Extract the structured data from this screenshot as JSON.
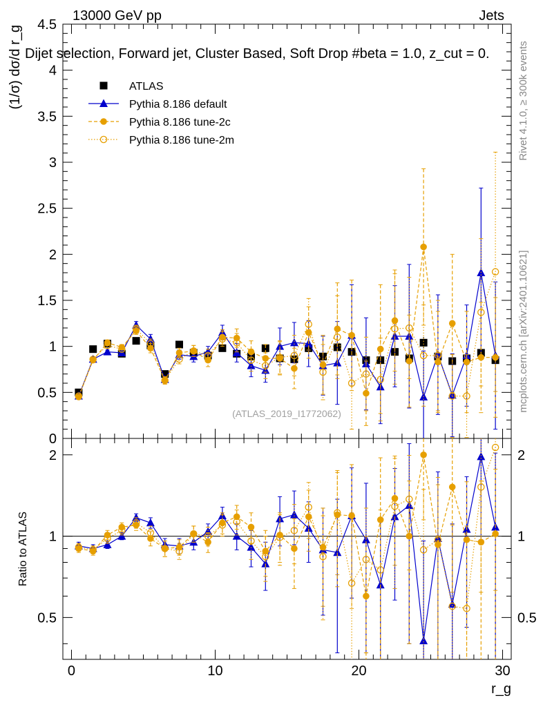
{
  "header": {
    "energy_label": "13000 GeV pp",
    "category_label": "Jets",
    "title": "Dijet selection, Forward jet, Cluster Based, Soft Drop #beta = 1.0, z_cut = 0.",
    "side_label_top": "Rivet 4.1.0, ≥ 300k events",
    "side_label_bottom": "mcplots.cern.ch [arXiv:2401.10621]",
    "watermark": "(ATLAS_2019_I1772062)"
  },
  "chart_data": [
    {
      "type": "scatter",
      "panel": "main",
      "ylabel": "(1/σ) dσ/d r_g",
      "xlim": [
        -0.6,
        30.6
      ],
      "ylim": [
        0,
        4.5
      ],
      "yticks": [
        0.5,
        1,
        1.5,
        2,
        2.5,
        3,
        3.5,
        4,
        4.5
      ],
      "ytick_labels": [
        "0.5",
        "1",
        "1.5",
        "2",
        "2.5",
        "3",
        "3.5",
        "4",
        "4.5"
      ],
      "x": [
        0.5,
        1.5,
        2.5,
        3.5,
        4.5,
        5.5,
        6.5,
        7.5,
        8.5,
        9.5,
        10.5,
        11.5,
        12.5,
        13.5,
        14.5,
        15.5,
        16.5,
        17.5,
        18.5,
        19.5,
        20.5,
        21.5,
        22.5,
        23.5,
        24.5,
        25.5,
        26.5,
        27.5,
        28.5,
        29.5
      ],
      "legend": [
        "ATLAS",
        "Pythia 8.186 default",
        "Pythia 8.186 tune-2c",
        "Pythia 8.186 tune-2m"
      ],
      "series": [
        {
          "name": "ATLAS",
          "color": "#000000",
          "marker": "square",
          "values": [
            0.5,
            0.97,
            1.03,
            0.92,
            1.06,
            1.01,
            0.7,
            1.02,
            0.93,
            0.9,
            0.98,
            0.92,
            0.89,
            0.98,
            0.87,
            0.86,
            0.98,
            0.89,
            0.99,
            0.94,
            0.85,
            0.85,
            0.94,
            0.87,
            1.04,
            0.89,
            0.84,
            0.87,
            0.93,
            0.85
          ],
          "errors": [
            0.01,
            0.01,
            0.01,
            0.01,
            0.01,
            0.01,
            0.01,
            0.02,
            0.02,
            0.02,
            0.02,
            0.02,
            0.03,
            0.03,
            0.03,
            0.03,
            0.04,
            0.04,
            0.05,
            0.05,
            0.05,
            0.05,
            0.05,
            0.05,
            0.06,
            0.06,
            0.06,
            0.06,
            0.06,
            0.06
          ]
        },
        {
          "name": "Pythia 8.186 default",
          "color": "#0000cc",
          "marker": "triangle",
          "values": [
            0.46,
            0.86,
            0.94,
            0.93,
            1.23,
            1.08,
            0.64,
            0.91,
            0.89,
            0.94,
            1.15,
            0.93,
            0.79,
            0.74,
            1.0,
            1.04,
            1.03,
            0.79,
            0.82,
            1.12,
            0.81,
            0.56,
            1.11,
            1.11,
            0.45,
            0.91,
            0.47,
            0.9,
            1.8,
            0.9
          ],
          "errors": [
            0.02,
            0.02,
            0.02,
            0.02,
            0.04,
            0.05,
            0.03,
            0.05,
            0.06,
            0.06,
            0.08,
            0.1,
            0.12,
            0.13,
            0.2,
            0.22,
            0.25,
            0.32,
            0.45,
            0.55,
            0.5,
            0.4,
            0.55,
            0.78,
            0.5,
            0.65,
            0.45,
            0.55,
            0.92,
            0.8
          ]
        },
        {
          "name": "Pythia 8.186 tune-2c",
          "color": "#e69f00",
          "marker": "circle",
          "values": [
            0.45,
            0.85,
            1.04,
            0.99,
            1.17,
            0.98,
            0.63,
            0.93,
            0.95,
            0.85,
            1.1,
            1.09,
            0.94,
            0.87,
            0.87,
            0.76,
            1.15,
            0.8,
            1.19,
            1.12,
            0.49,
            0.97,
            1.28,
            0.84,
            2.08,
            0.83,
            1.25,
            0.83,
            0.88,
            0.88
          ],
          "errors": [
            0.02,
            0.02,
            0.03,
            0.03,
            0.04,
            0.05,
            0.04,
            0.05,
            0.06,
            0.07,
            0.08,
            0.1,
            0.12,
            0.15,
            0.18,
            0.22,
            0.28,
            0.32,
            0.5,
            0.6,
            0.35,
            0.7,
            0.55,
            0.5,
            0.85,
            0.55,
            0.75,
            0.55,
            0.6,
            0.65
          ]
        },
        {
          "name": "Pythia 8.186 tune-2m",
          "color": "#e69f00",
          "marker": "open-circle",
          "values": [
            0.46,
            0.86,
            1.01,
            0.97,
            1.19,
            1.03,
            0.63,
            0.86,
            0.95,
            0.9,
            1.08,
            1.04,
            0.85,
            0.79,
            0.88,
            0.9,
            1.24,
            0.72,
            1.1,
            0.6,
            0.7,
            0.64,
            1.19,
            1.2,
            0.9,
            0.9,
            0.46,
            0.46,
            1.37,
            1.81
          ],
          "errors": [
            0.02,
            0.02,
            0.03,
            0.03,
            0.04,
            0.05,
            0.04,
            0.05,
            0.06,
            0.07,
            0.08,
            0.1,
            0.12,
            0.14,
            0.18,
            0.22,
            0.28,
            0.3,
            0.45,
            0.5,
            0.4,
            0.45,
            0.6,
            0.55,
            0.55,
            0.6,
            0.45,
            0.45,
            0.8,
            1.3
          ]
        }
      ]
    },
    {
      "type": "scatter",
      "panel": "ratio",
      "xlabel": "r_g",
      "ylabel": "Ratio to ATLAS",
      "xlim": [
        -0.6,
        30.6
      ],
      "ylim": [
        0.35,
        2.3
      ],
      "xticks": [
        0,
        10,
        20,
        30
      ],
      "xtick_labels": [
        "0",
        "10",
        "20",
        "30"
      ],
      "yticks": [
        0.5,
        1,
        2
      ],
      "ytick_labels": [
        "0.5",
        "1",
        "2"
      ],
      "reference_line": 1,
      "x": [
        0.5,
        1.5,
        2.5,
        3.5,
        4.5,
        5.5,
        6.5,
        7.5,
        8.5,
        9.5,
        10.5,
        11.5,
        12.5,
        13.5,
        14.5,
        15.5,
        16.5,
        17.5,
        18.5,
        19.5,
        20.5,
        21.5,
        22.5,
        23.5,
        24.5,
        25.5,
        26.5,
        27.5,
        28.5,
        29.5
      ],
      "series": [
        {
          "name": "Pythia 8.186 default",
          "color": "#0000cc",
          "marker": "triangle",
          "values": [
            0.92,
            0.9,
            0.93,
            1.0,
            1.17,
            1.12,
            0.93,
            0.92,
            0.95,
            1.04,
            1.19,
            1.0,
            0.91,
            0.79,
            1.16,
            1.2,
            1.07,
            0.89,
            0.87,
            1.19,
            0.97,
            0.66,
            1.18,
            1.3,
            0.41,
            0.98,
            0.56,
            1.06,
            1.97,
            1.08
          ],
          "errors": [
            0.03,
            0.03,
            0.03,
            0.03,
            0.04,
            0.05,
            0.05,
            0.06,
            0.06,
            0.07,
            0.09,
            0.11,
            0.14,
            0.16,
            0.24,
            0.27,
            0.27,
            0.38,
            0.5,
            0.6,
            0.6,
            0.48,
            0.6,
            0.9,
            0.55,
            0.75,
            0.55,
            0.6,
            1.0,
            0.95
          ]
        },
        {
          "name": "Pythia 8.186 tune-2c",
          "color": "#e69f00",
          "marker": "circle",
          "values": [
            0.9,
            0.88,
            1.01,
            1.08,
            1.1,
            0.98,
            0.9,
            0.91,
            1.02,
            0.95,
            1.12,
            1.18,
            1.08,
            0.88,
            1.01,
            0.9,
            1.18,
            0.91,
            1.2,
            1.19,
            0.6,
            1.15,
            1.38,
            1.0,
            2.0,
            0.93,
            1.52,
            0.97,
            0.95,
            1.02
          ],
          "errors": [
            0.03,
            0.03,
            0.04,
            0.04,
            0.05,
            0.06,
            0.06,
            0.06,
            0.07,
            0.08,
            0.1,
            0.12,
            0.14,
            0.17,
            0.21,
            0.26,
            0.3,
            0.36,
            0.55,
            0.65,
            0.4,
            0.8,
            0.6,
            0.6,
            0.85,
            0.62,
            0.9,
            0.62,
            0.65,
            0.75
          ]
        },
        {
          "name": "Pythia 8.186 tune-2m",
          "color": "#e69f00",
          "marker": "open-circle",
          "values": [
            0.91,
            0.89,
            0.98,
            1.05,
            1.12,
            1.03,
            0.9,
            0.88,
            1.02,
            1.0,
            1.1,
            1.13,
            0.96,
            0.84,
            0.99,
            1.05,
            1.28,
            0.84,
            1.22,
            0.67,
            0.82,
            0.75,
            1.29,
            1.37,
            0.89,
            0.97,
            0.55,
            0.54,
            1.52,
            2.13
          ],
          "errors": [
            0.03,
            0.03,
            0.04,
            0.04,
            0.05,
            0.06,
            0.06,
            0.06,
            0.07,
            0.08,
            0.1,
            0.12,
            0.14,
            0.16,
            0.21,
            0.26,
            0.3,
            0.35,
            0.5,
            0.55,
            0.45,
            0.5,
            0.65,
            0.62,
            0.6,
            0.68,
            0.55,
            0.55,
            0.9,
            1.5
          ]
        }
      ]
    }
  ]
}
